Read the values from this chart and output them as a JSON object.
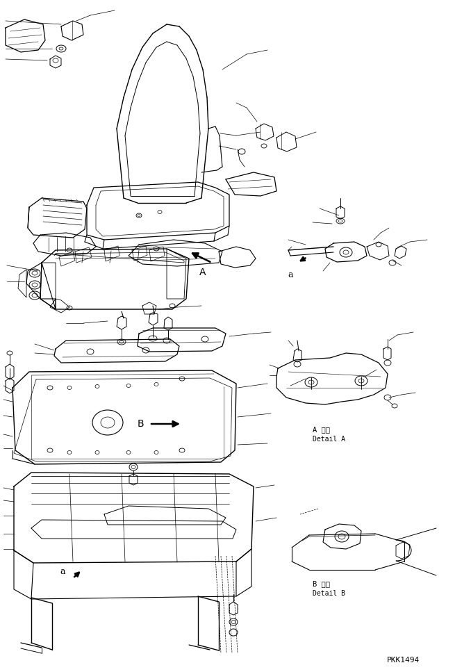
{
  "bg_color": "#ffffff",
  "lc": "#000000",
  "fig_width": 6.78,
  "fig_height": 9.67,
  "dpi": 100,
  "label_A_detail_jp": "A 詳細",
  "label_A_detail_en": "Detail A",
  "label_B_detail_jp": "B 詳細",
  "label_B_detail_en": "Detail B",
  "label_PKK": "PKK1494",
  "label_A": "A",
  "label_B": "B",
  "label_a": "a"
}
